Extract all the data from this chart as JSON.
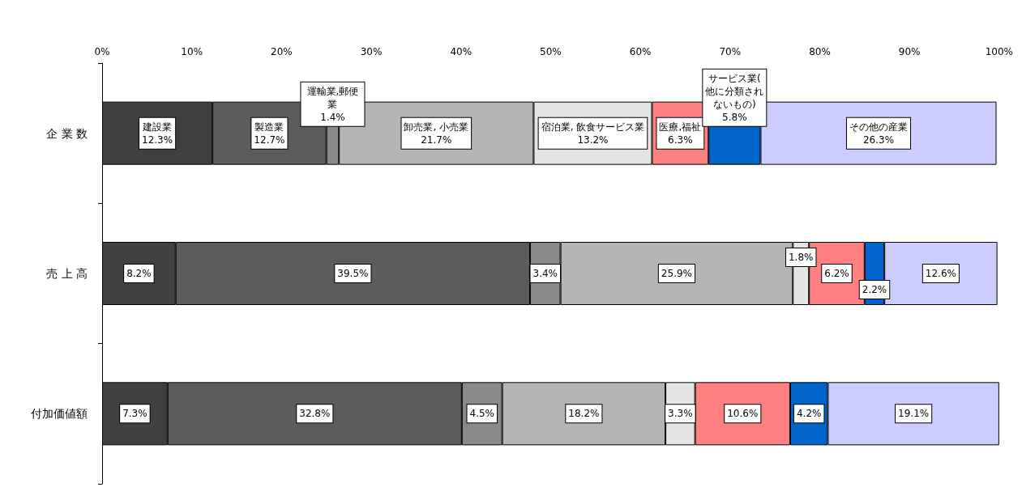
{
  "chart_data": {
    "type": "bar",
    "orientation": "horizontal",
    "stacked": true,
    "categories": [
      "企 業 数",
      "売 上 高",
      "付加価値額"
    ],
    "xlim": [
      0,
      100
    ],
    "xticks": [
      {
        "value": 0,
        "label": "0%"
      },
      {
        "value": 10,
        "label": "10%"
      },
      {
        "value": 20,
        "label": "20%"
      },
      {
        "value": 30,
        "label": "30%"
      },
      {
        "value": 40,
        "label": "40%"
      },
      {
        "value": 50,
        "label": "50%"
      },
      {
        "value": 60,
        "label": "60%"
      },
      {
        "value": 70,
        "label": "70%"
      },
      {
        "value": 80,
        "label": "80%"
      },
      {
        "value": 90,
        "label": "90%"
      },
      {
        "value": 100,
        "label": "100%"
      }
    ],
    "grid": false,
    "legend": false,
    "series": [
      {
        "name": "建設業",
        "color": "#404040",
        "values": [
          12.3,
          8.2,
          7.3
        ],
        "value_labels": [
          "12.3%",
          "8.2%",
          "7.3%"
        ]
      },
      {
        "name": "製造業",
        "color": "#5c5c5c",
        "values": [
          12.7,
          39.5,
          32.8
        ],
        "value_labels": [
          "12.7%",
          "39.5%",
          "32.8%"
        ]
      },
      {
        "name": "運輸業,郵便業",
        "color": "#8a8a8a",
        "values": [
          1.4,
          3.4,
          4.5
        ],
        "value_labels": [
          "1.4%",
          "3.4%",
          "4.5%"
        ]
      },
      {
        "name": "卸売業, 小売業",
        "color": "#b4b4b4",
        "values": [
          21.7,
          25.9,
          18.2
        ],
        "value_labels": [
          "21.7%",
          "25.9%",
          "18.2%"
        ]
      },
      {
        "name": "宿泊業, 飲食サービス業",
        "color": "#e4e4e4",
        "values": [
          13.2,
          1.8,
          3.3
        ],
        "value_labels": [
          "13.2%",
          "1.8%",
          "3.3%"
        ]
      },
      {
        "name": "医療,福祉",
        "color": "#ff8080",
        "values": [
          6.3,
          6.2,
          10.6
        ],
        "value_labels": [
          "6.3%",
          "6.2%",
          "10.6%"
        ]
      },
      {
        "name": "サービス業(他に分類されないもの)",
        "color": "#0066cc",
        "values": [
          5.8,
          2.2,
          4.2
        ],
        "value_labels": [
          "5.8%",
          "2.2%",
          "4.2%"
        ]
      },
      {
        "name": "その他の産業",
        "color": "#ccccff",
        "values": [
          26.3,
          12.6,
          19.1
        ],
        "value_labels": [
          "26.3%",
          "12.6%",
          "19.1%"
        ]
      }
    ]
  }
}
